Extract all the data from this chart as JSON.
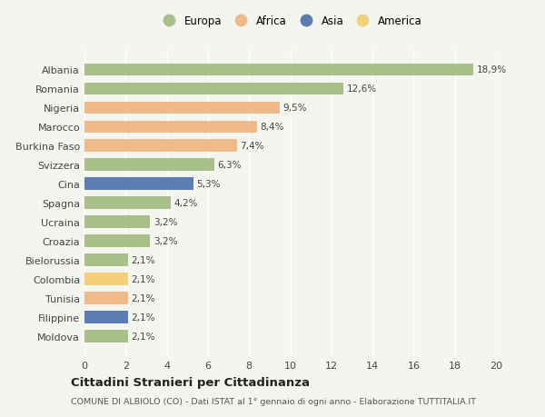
{
  "countries": [
    "Albania",
    "Romania",
    "Nigeria",
    "Marocco",
    "Burkina Faso",
    "Svizzera",
    "Cina",
    "Spagna",
    "Ucraina",
    "Croazia",
    "Bielorussia",
    "Colombia",
    "Tunisia",
    "Filippine",
    "Moldova"
  ],
  "values": [
    18.9,
    12.6,
    9.5,
    8.4,
    7.4,
    6.3,
    5.3,
    4.2,
    3.2,
    3.2,
    2.1,
    2.1,
    2.1,
    2.1,
    2.1
  ],
  "labels": [
    "18,9%",
    "12,6%",
    "9,5%",
    "8,4%",
    "7,4%",
    "6,3%",
    "5,3%",
    "4,2%",
    "3,2%",
    "3,2%",
    "2,1%",
    "2,1%",
    "2,1%",
    "2,1%",
    "2,1%"
  ],
  "continents": [
    "Europa",
    "Europa",
    "Africa",
    "Africa",
    "Africa",
    "Europa",
    "Asia",
    "Europa",
    "Europa",
    "Europa",
    "Europa",
    "America",
    "Africa",
    "Asia",
    "Europa"
  ],
  "continent_colors": {
    "Europa": "#a8c08a",
    "Africa": "#f0b98a",
    "Asia": "#5b7db1",
    "America": "#f5d07a"
  },
  "legend_order": [
    "Europa",
    "Africa",
    "Asia",
    "America"
  ],
  "title": "Cittadini Stranieri per Cittadinanza",
  "subtitle": "COMUNE DI ALBIOLO (CO) - Dati ISTAT al 1° gennaio di ogni anno - Elaborazione TUTTITALIA.IT",
  "xlim": [
    0,
    20
  ],
  "xticks": [
    0,
    2,
    4,
    6,
    8,
    10,
    12,
    14,
    16,
    18,
    20
  ],
  "background_color": "#f5f5f0",
  "grid_color": "#ffffff",
  "bar_height": 0.65
}
